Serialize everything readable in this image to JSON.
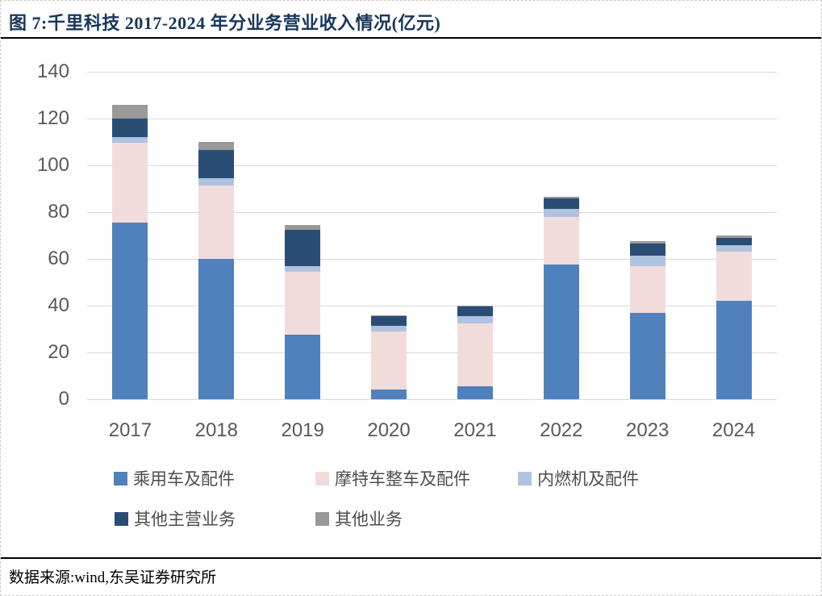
{
  "header": {
    "title": "图 7:千里科技 2017-2024 年分业务营业收入情况(亿元)"
  },
  "footer": {
    "source": "数据来源:wind,东吴证券研究所"
  },
  "colors": {
    "title_text": "#17365D",
    "axis_text": "#595959",
    "legend_text": "#4D4D4D",
    "gridline": "#D9D9D9",
    "rule": "#000000"
  },
  "chart_data": {
    "type": "bar",
    "stacked": true,
    "title": "千里科技2017-2024年分业务营业收入情况(亿元)",
    "categories": [
      "2017",
      "2018",
      "2019",
      "2020",
      "2021",
      "2022",
      "2023",
      "2024"
    ],
    "series": [
      {
        "name": "乘用车及配件",
        "color": "#4F81BD",
        "values": [
          75.5,
          60,
          27.5,
          4,
          5.5,
          57.5,
          37,
          42
        ]
      },
      {
        "name": "摩特车整车及配件",
        "color": "#F2DCDB",
        "values": [
          34,
          31.5,
          27,
          25,
          27,
          20.5,
          20,
          21
        ]
      },
      {
        "name": "内燃机及配件",
        "color": "#AFC3E0",
        "values": [
          2.5,
          3,
          2.5,
          2.5,
          3,
          3.5,
          4.5,
          3
        ]
      },
      {
        "name": "其他主营业务",
        "color": "#2A4D76",
        "values": [
          8,
          12,
          15.5,
          4,
          4,
          4.5,
          5,
          3
        ]
      },
      {
        "name": "其他业务",
        "color": "#999999",
        "values": [
          6,
          3.5,
          2,
          0.5,
          0.5,
          0.5,
          1,
          1
        ]
      }
    ],
    "totals": [
      126,
      110,
      74.5,
      36,
      40,
      86.5,
      67.5,
      70
    ],
    "ylim": [
      0,
      140
    ],
    "ytick_step": 20,
    "xlabel": "",
    "ylabel": "",
    "grid": true,
    "legend_position": "bottom"
  }
}
